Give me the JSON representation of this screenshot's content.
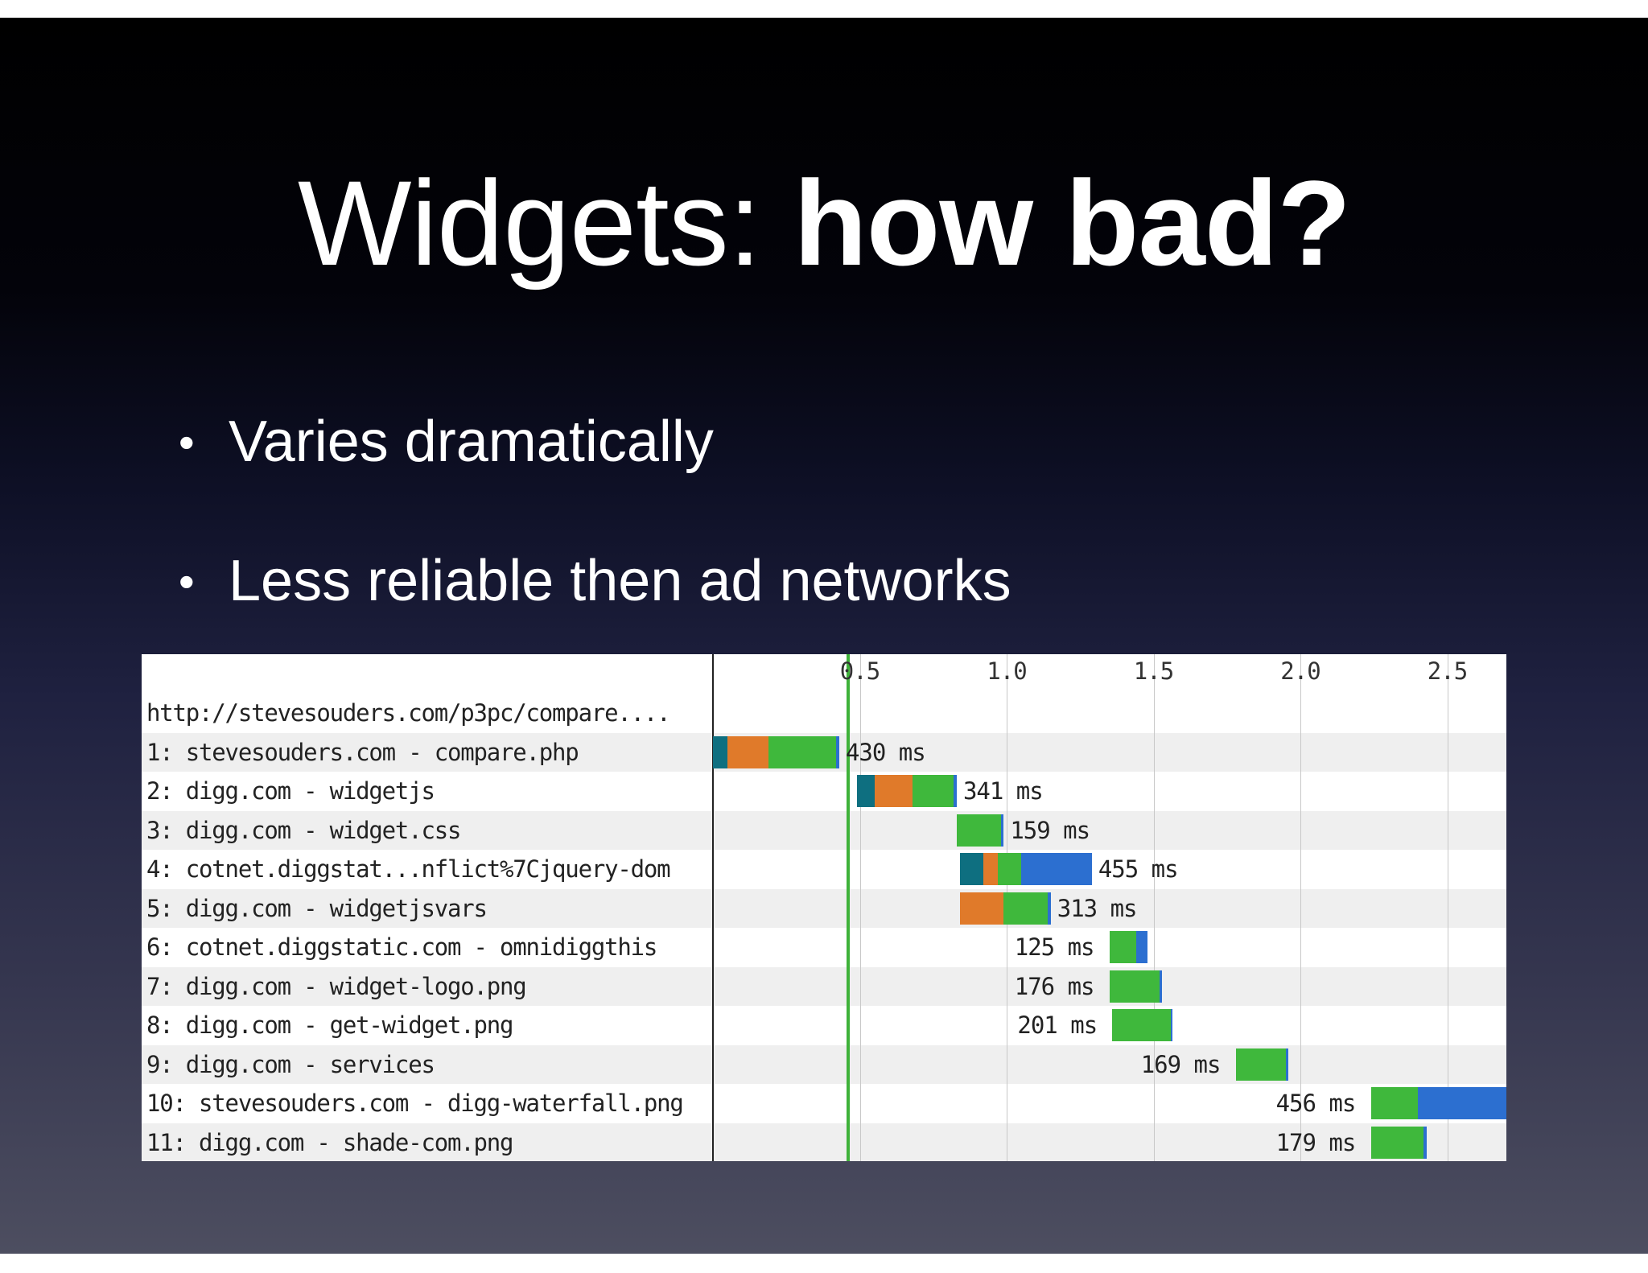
{
  "slide": {
    "title_light": "Widgets: ",
    "title_bold": "how bad?",
    "bullet_glyph": "•",
    "bullets": [
      "Varies dramatically",
      "Less reliable then ad networks"
    ]
  },
  "waterfall": {
    "header": "http://stevesouders.com/p3pc/compare....",
    "axis_ticks": [
      "0.5",
      "1.0",
      "1.5",
      "2.0",
      "2.5"
    ],
    "tick_values": [
      0.5,
      1.0,
      1.5,
      2.0,
      2.5
    ],
    "onload_time": 0.46,
    "colors": {
      "dns": "#0e6f80",
      "connect": "#e07a2a",
      "wait": "#3fb83c",
      "receive": "#2c6fd0",
      "onload": "#3fb23a"
    },
    "requests": [
      {
        "label": "1: stevesouders.com - compare.php",
        "duration": "430 ms",
        "segments": [
          {
            "phase": "dns",
            "start": 0.0,
            "end": 0.05
          },
          {
            "phase": "connect",
            "start": 0.05,
            "end": 0.19
          },
          {
            "phase": "wait",
            "start": 0.19,
            "end": 0.42
          },
          {
            "phase": "receive",
            "start": 0.42,
            "end": 0.43
          }
        ]
      },
      {
        "label": "2: digg.com - widgetjs",
        "duration": "341 ms",
        "segments": [
          {
            "phase": "dns",
            "start": 0.49,
            "end": 0.55
          },
          {
            "phase": "connect",
            "start": 0.55,
            "end": 0.68
          },
          {
            "phase": "wait",
            "start": 0.68,
            "end": 0.82
          },
          {
            "phase": "receive",
            "start": 0.82,
            "end": 0.83
          }
        ]
      },
      {
        "label": "3: digg.com - widget.css",
        "duration": "159 ms",
        "segments": [
          {
            "phase": "wait",
            "start": 0.83,
            "end": 0.98
          },
          {
            "phase": "receive",
            "start": 0.98,
            "end": 0.99
          }
        ]
      },
      {
        "label": "4: cotnet.diggstat...nflict%7Cjquery-dom",
        "duration": "455 ms",
        "segments": [
          {
            "phase": "dns",
            "start": 0.84,
            "end": 0.92
          },
          {
            "phase": "connect",
            "start": 0.92,
            "end": 0.97
          },
          {
            "phase": "wait",
            "start": 0.97,
            "end": 1.05
          },
          {
            "phase": "receive",
            "start": 1.05,
            "end": 1.29
          }
        ]
      },
      {
        "label": "5: digg.com - widgetjsvars",
        "duration": "313 ms",
        "segments": [
          {
            "phase": "connect",
            "start": 0.84,
            "end": 0.99
          },
          {
            "phase": "wait",
            "start": 0.99,
            "end": 1.14
          },
          {
            "phase": "receive",
            "start": 1.14,
            "end": 1.15
          }
        ]
      },
      {
        "label": "6: cotnet.diggstatic.com - omnidiggthis",
        "duration": "125 ms",
        "segments": [
          {
            "phase": "wait",
            "start": 1.35,
            "end": 1.44
          },
          {
            "phase": "receive",
            "start": 1.44,
            "end": 1.48
          }
        ]
      },
      {
        "label": "7: digg.com - widget-logo.png",
        "duration": "176 ms",
        "segments": [
          {
            "phase": "wait",
            "start": 1.35,
            "end": 1.52
          },
          {
            "phase": "receive",
            "start": 1.52,
            "end": 1.53
          }
        ]
      },
      {
        "label": "8: digg.com - get-widget.png",
        "duration": "201 ms",
        "segments": [
          {
            "phase": "wait",
            "start": 1.36,
            "end": 1.56
          },
          {
            "phase": "receive",
            "start": 1.56,
            "end": 1.565
          }
        ]
      },
      {
        "label": "9: digg.com - services",
        "duration": "169 ms",
        "segments": [
          {
            "phase": "wait",
            "start": 1.78,
            "end": 1.95
          },
          {
            "phase": "receive",
            "start": 1.95,
            "end": 1.96
          }
        ]
      },
      {
        "label": "10: stevesouders.com - digg-waterfall.png",
        "duration": "456 ms",
        "segments": [
          {
            "phase": "wait",
            "start": 2.24,
            "end": 2.4
          },
          {
            "phase": "receive",
            "start": 2.4,
            "end": 2.7
          }
        ]
      },
      {
        "label": "11: digg.com - shade-com.png",
        "duration": "179 ms",
        "segments": [
          {
            "phase": "wait",
            "start": 2.24,
            "end": 2.42
          },
          {
            "phase": "receive",
            "start": 2.42,
            "end": 2.43
          }
        ]
      }
    ]
  }
}
